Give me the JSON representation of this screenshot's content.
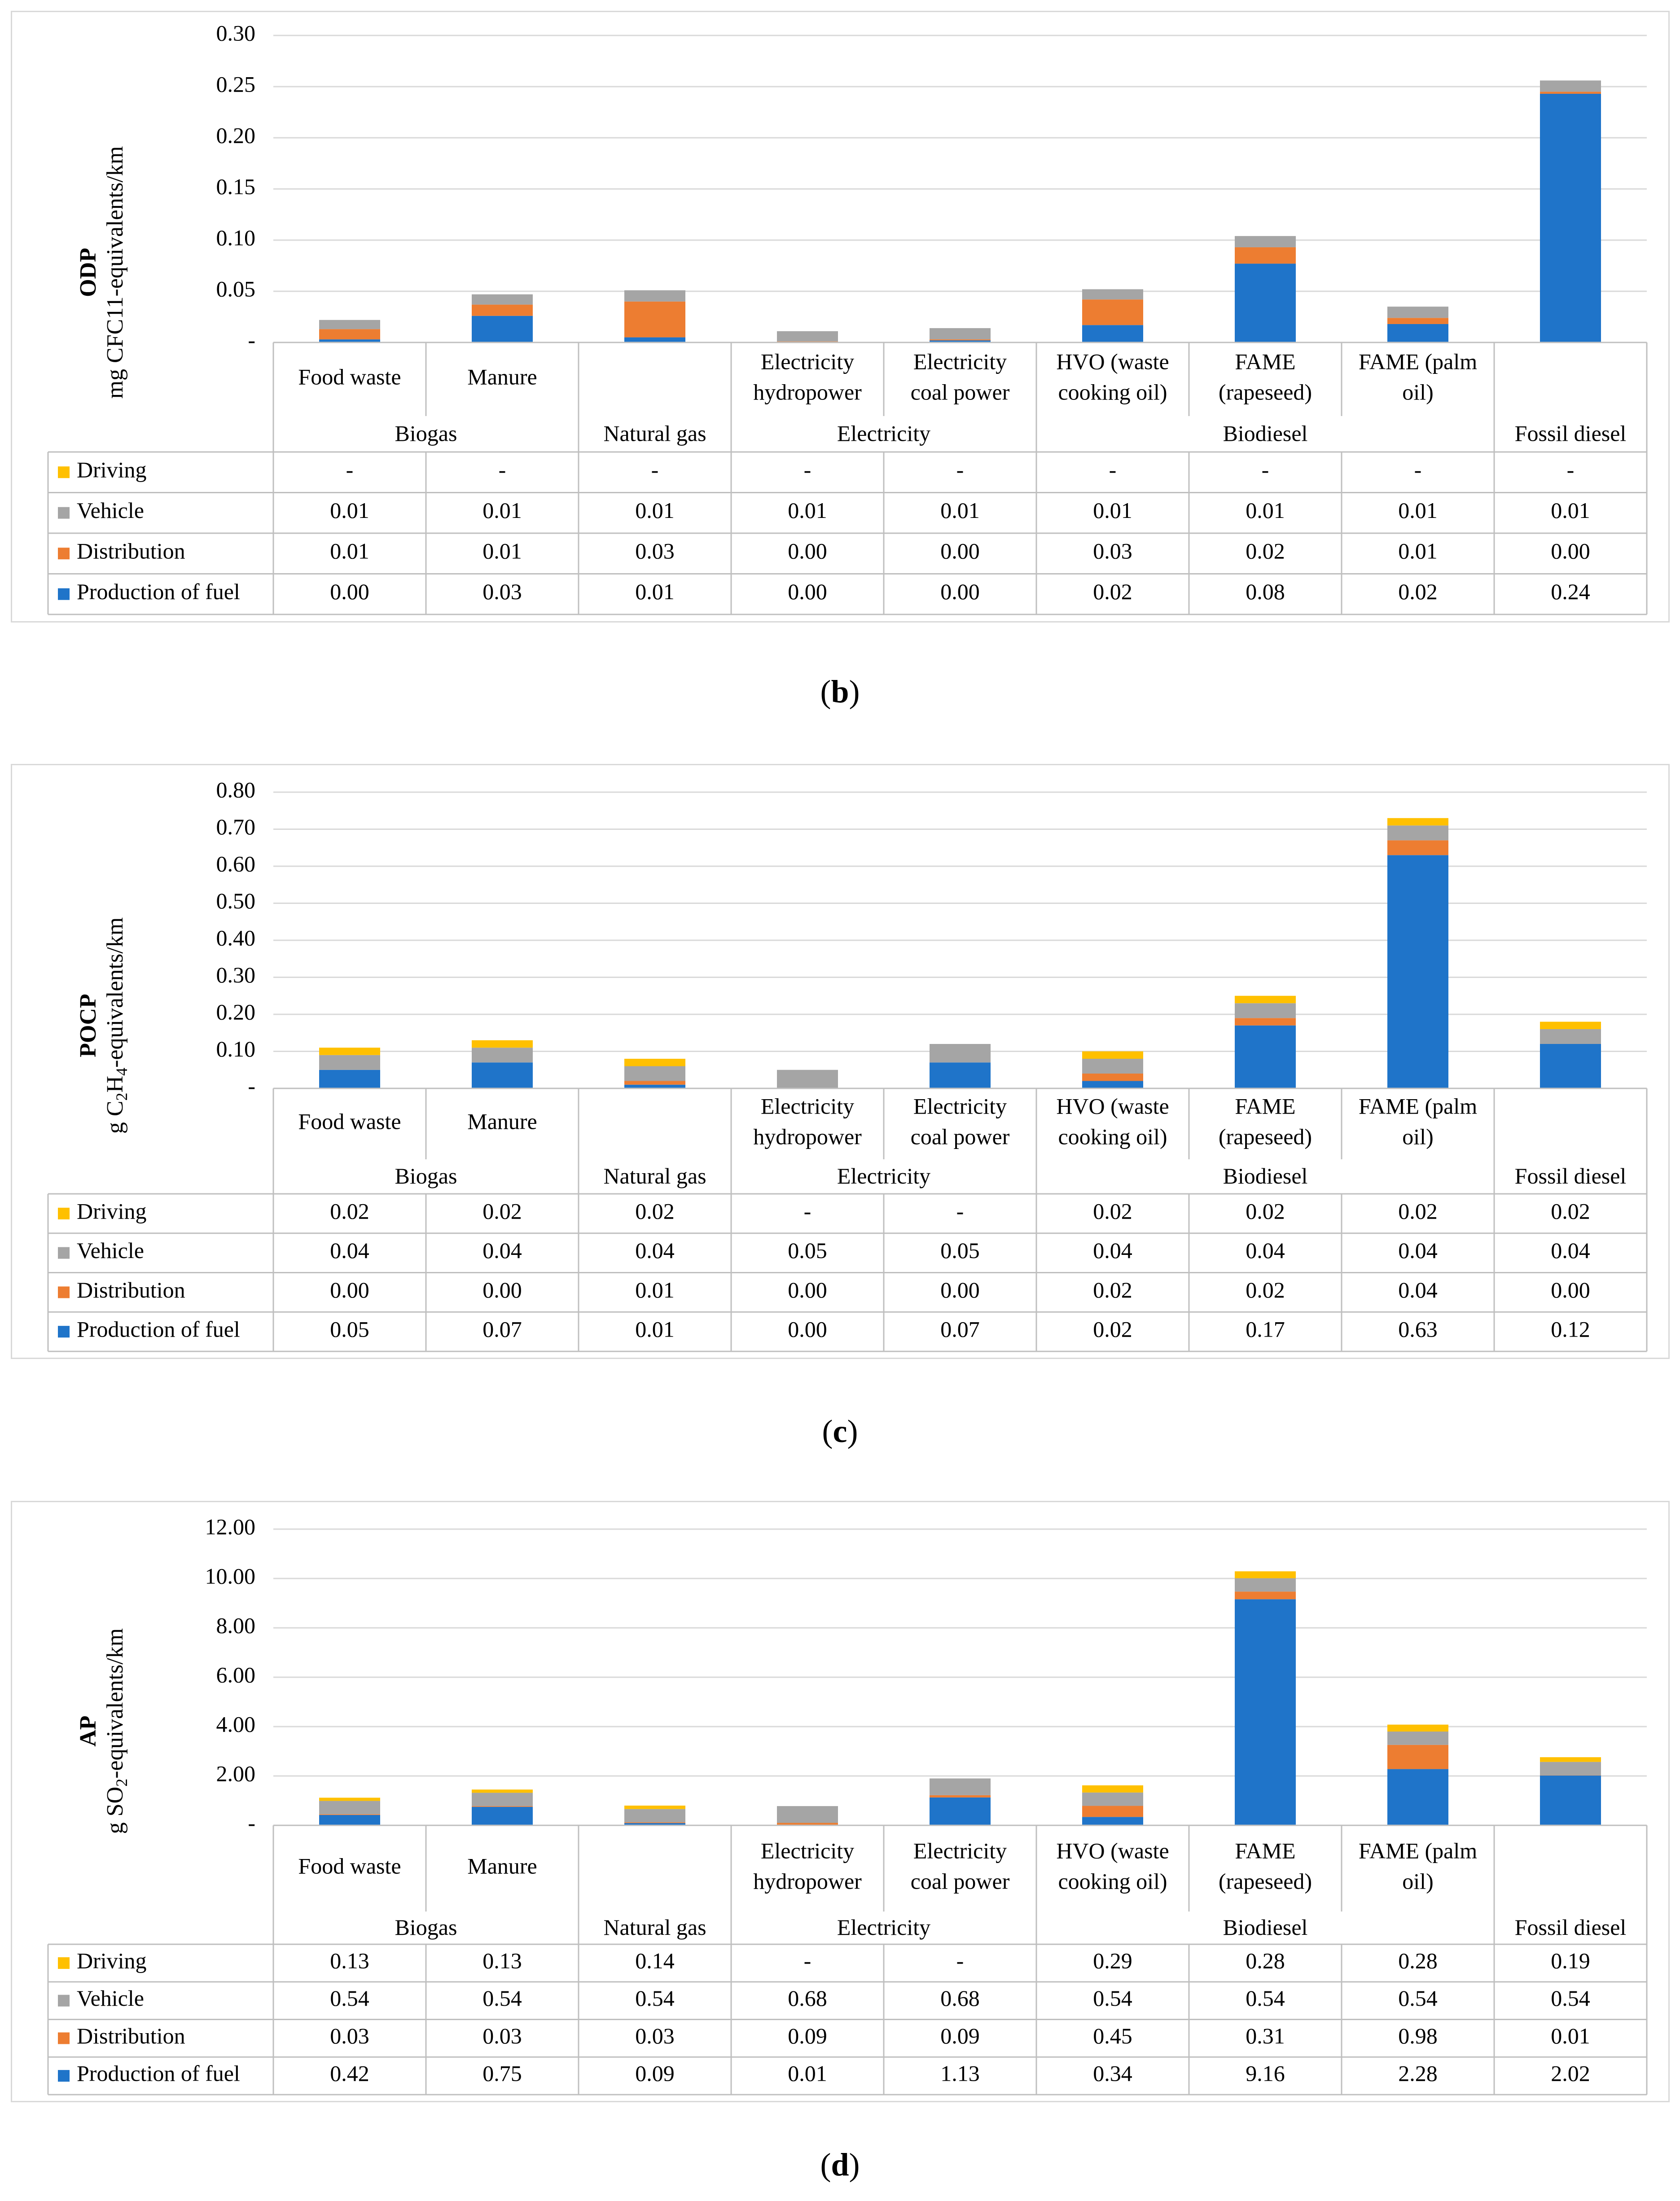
{
  "categories": [
    {
      "sub": [
        "Food waste"
      ],
      "group": "Biogas"
    },
    {
      "sub": [
        "Manure"
      ],
      "group": "Biogas"
    },
    {
      "sub": [],
      "group": "Natural gas"
    },
    {
      "sub": [
        "Electricity",
        "hydropower"
      ],
      "group": "Electricity"
    },
    {
      "sub": [
        "Electricity",
        "coal power"
      ],
      "group": "Electricity"
    },
    {
      "sub": [
        "HVO (waste",
        "cooking oil)"
      ],
      "group": "Biodiesel"
    },
    {
      "sub": [
        "FAME",
        "(rapeseed)"
      ],
      "group": "Biodiesel"
    },
    {
      "sub": [
        "FAME (palm",
        "oil)"
      ],
      "group": "Biodiesel"
    },
    {
      "sub": [],
      "group": "Fossil diesel"
    }
  ],
  "groups": [
    {
      "label": "Biogas",
      "span": [
        0,
        1
      ]
    },
    {
      "label": "Natural gas",
      "span": [
        2,
        2
      ]
    },
    {
      "label": "Electricity",
      "span": [
        3,
        4
      ]
    },
    {
      "label": "Biodiesel",
      "span": [
        5,
        7
      ]
    },
    {
      "label": "Fossil diesel",
      "span": [
        8,
        8
      ]
    }
  ],
  "series_colors": {
    "Driving": "#ffc000",
    "Vehicle": "#a5a5a5",
    "Distribution": "#ed7d31",
    "Production of fuel": "#1f74c9"
  },
  "chart_data": [
    {
      "type": "bar",
      "stacked": true,
      "abbr": "ODP",
      "ylabel_parts": [
        {
          "t": "mg CFC11-equivalents/km"
        }
      ],
      "caption": "b",
      "ylim": [
        0,
        0.3
      ],
      "ytick_labels": [
        "-",
        "0.05",
        "0.10",
        "0.15",
        "0.20",
        "0.25",
        "0.30"
      ],
      "stack_order": [
        "Production of fuel",
        "Distribution",
        "Vehicle",
        "Driving"
      ],
      "series": [
        {
          "name": "Driving",
          "values": [
            0,
            0,
            0,
            0,
            0,
            0,
            0,
            0,
            0
          ],
          "labels": [
            "-",
            "-",
            "-",
            "-",
            "-",
            "-",
            "-",
            "-",
            "-"
          ]
        },
        {
          "name": "Vehicle",
          "values": [
            0.009,
            0.01,
            0.011,
            0.01,
            0.011,
            0.01,
            0.011,
            0.011,
            0.011
          ],
          "labels": [
            "0.01",
            "0.01",
            "0.01",
            "0.01",
            "0.01",
            "0.01",
            "0.01",
            "0.01",
            "0.01"
          ]
        },
        {
          "name": "Distribution",
          "values": [
            0.01,
            0.011,
            0.035,
            0.001,
            0.001,
            0.025,
            0.016,
            0.006,
            0.002
          ],
          "labels": [
            "0.01",
            "0.01",
            "0.03",
            "0.00",
            "0.00",
            "0.03",
            "0.02",
            "0.01",
            "0.00"
          ]
        },
        {
          "name": "Production of fuel",
          "values": [
            0.003,
            0.026,
            0.005,
            0.0,
            0.002,
            0.017,
            0.077,
            0.018,
            0.243
          ],
          "labels": [
            "0.00",
            "0.03",
            "0.01",
            "0.00",
            "0.00",
            "0.02",
            "0.08",
            "0.02",
            "0.24"
          ]
        }
      ]
    },
    {
      "type": "bar",
      "stacked": true,
      "abbr": "POCP",
      "ylabel_parts": [
        {
          "t": "g C"
        },
        {
          "sub": "2"
        },
        {
          "t": "H"
        },
        {
          "sub": "4"
        },
        {
          "t": "-equivalents/km"
        }
      ],
      "caption": "c",
      "ylim": [
        0,
        0.8
      ],
      "ytick_labels": [
        "-",
        "0.10",
        "0.20",
        "0.30",
        "0.40",
        "0.50",
        "0.60",
        "0.70",
        "0.80"
      ],
      "stack_order": [
        "Production of fuel",
        "Distribution",
        "Vehicle",
        "Driving"
      ],
      "series": [
        {
          "name": "Driving",
          "values": [
            0.02,
            0.02,
            0.02,
            0,
            0,
            0.02,
            0.02,
            0.02,
            0.02
          ],
          "labels": [
            "0.02",
            "0.02",
            "0.02",
            "-",
            "-",
            "0.02",
            "0.02",
            "0.02",
            "0.02"
          ]
        },
        {
          "name": "Vehicle",
          "values": [
            0.04,
            0.04,
            0.04,
            0.05,
            0.05,
            0.04,
            0.04,
            0.04,
            0.04
          ],
          "labels": [
            "0.04",
            "0.04",
            "0.04",
            "0.05",
            "0.05",
            "0.04",
            "0.04",
            "0.04",
            "0.04"
          ]
        },
        {
          "name": "Distribution",
          "values": [
            0.0,
            0.0,
            0.01,
            0.0,
            0.0,
            0.02,
            0.02,
            0.04,
            0.0
          ],
          "labels": [
            "0.00",
            "0.00",
            "0.01",
            "0.00",
            "0.00",
            "0.02",
            "0.02",
            "0.04",
            "0.00"
          ]
        },
        {
          "name": "Production of fuel",
          "values": [
            0.05,
            0.07,
            0.01,
            0.0,
            0.07,
            0.02,
            0.17,
            0.63,
            0.12
          ],
          "labels": [
            "0.05",
            "0.07",
            "0.01",
            "0.00",
            "0.07",
            "0.02",
            "0.17",
            "0.63",
            "0.12"
          ]
        }
      ]
    },
    {
      "type": "bar",
      "stacked": true,
      "abbr": "AP",
      "ylabel_parts": [
        {
          "t": "g SO"
        },
        {
          "sub": "2"
        },
        {
          "t": "-equivalents/km"
        }
      ],
      "caption": "d",
      "ylim": [
        0,
        12.0
      ],
      "ytick_labels": [
        "-",
        "2.00",
        "4.00",
        "6.00",
        "8.00",
        "10.00",
        "12.00"
      ],
      "stack_order": [
        "Production of fuel",
        "Distribution",
        "Vehicle",
        "Driving"
      ],
      "series": [
        {
          "name": "Driving",
          "values": [
            0.13,
            0.13,
            0.14,
            0,
            0,
            0.29,
            0.28,
            0.28,
            0.19
          ],
          "labels": [
            "0.13",
            "0.13",
            "0.14",
            "-",
            "-",
            "0.29",
            "0.28",
            "0.28",
            "0.19"
          ]
        },
        {
          "name": "Vehicle",
          "values": [
            0.54,
            0.54,
            0.54,
            0.68,
            0.68,
            0.54,
            0.54,
            0.54,
            0.54
          ],
          "labels": [
            "0.54",
            "0.54",
            "0.54",
            "0.68",
            "0.68",
            "0.54",
            "0.54",
            "0.54",
            "0.54"
          ]
        },
        {
          "name": "Distribution",
          "values": [
            0.03,
            0.03,
            0.03,
            0.09,
            0.09,
            0.45,
            0.31,
            0.98,
            0.01
          ],
          "labels": [
            "0.03",
            "0.03",
            "0.03",
            "0.09",
            "0.09",
            "0.45",
            "0.31",
            "0.98",
            "0.01"
          ]
        },
        {
          "name": "Production of fuel",
          "values": [
            0.42,
            0.75,
            0.09,
            0.01,
            1.13,
            0.34,
            9.16,
            2.28,
            2.02
          ],
          "labels": [
            "0.42",
            "0.75",
            "0.09",
            "0.01",
            "1.13",
            "0.34",
            "9.16",
            "2.28",
            "2.02"
          ]
        }
      ]
    }
  ]
}
